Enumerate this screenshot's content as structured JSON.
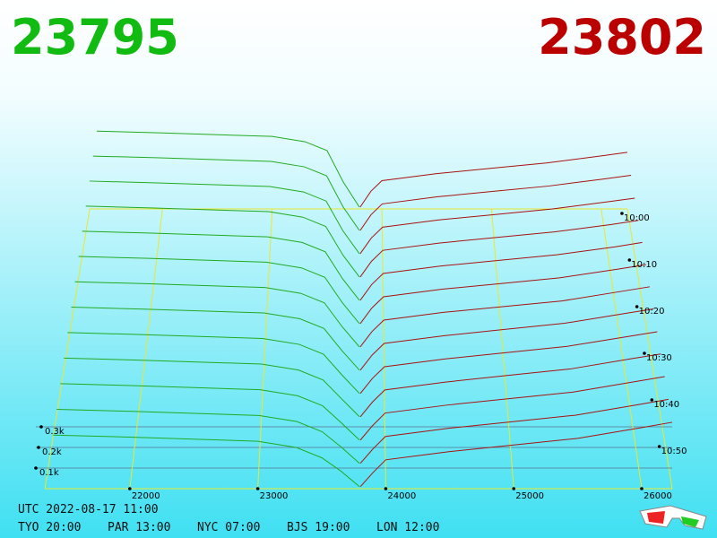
{
  "chart_data": {
    "type": "depth3d",
    "bid_price": 23795,
    "ask_price": 23802,
    "bid_color": "#11bb11",
    "ask_color": "#bb0000",
    "xlim": [
      21336,
      26238
    ],
    "xticks": [
      22000,
      23000,
      24000,
      25000,
      26000
    ],
    "zticks": [
      {
        "value": 100,
        "label": "0.1k"
      },
      {
        "value": 200,
        "label": "0.2k"
      },
      {
        "value": 300,
        "label": "0.3k"
      }
    ],
    "tlim": [
      0,
      60
    ],
    "tticks": [
      {
        "value": 0,
        "label": "10:00"
      },
      {
        "value": 10,
        "label": "10:10"
      },
      {
        "value": 20,
        "label": "10:20"
      },
      {
        "value": 30,
        "label": "10:30"
      },
      {
        "value": 40,
        "label": "10:40"
      },
      {
        "value": 50,
        "label": "10:50"
      }
    ],
    "t": [
      0,
      5,
      10,
      15,
      20,
      25,
      30,
      35,
      40,
      45,
      50,
      55,
      60
    ],
    "bids": {
      "color": "#22aa22",
      "x": [
        21400,
        22000,
        23000,
        23300,
        23500,
        23650,
        23795
      ],
      "values": [
        [
          440,
          430,
          410,
          380,
          330,
          150,
          10
        ],
        [
          425,
          415,
          395,
          365,
          315,
          140,
          10
        ],
        [
          410,
          400,
          380,
          350,
          300,
          135,
          10
        ],
        [
          395,
          385,
          365,
          335,
          285,
          130,
          10
        ],
        [
          380,
          370,
          350,
          320,
          270,
          125,
          10
        ],
        [
          365,
          355,
          335,
          305,
          255,
          120,
          10
        ],
        [
          350,
          340,
          320,
          290,
          240,
          115,
          10
        ],
        [
          335,
          325,
          305,
          275,
          225,
          110,
          10
        ],
        [
          320,
          310,
          290,
          260,
          210,
          105,
          10
        ],
        [
          305,
          295,
          275,
          245,
          195,
          100,
          10
        ],
        [
          290,
          280,
          260,
          230,
          180,
          95,
          10
        ],
        [
          275,
          265,
          245,
          215,
          165,
          90,
          10
        ],
        [
          260,
          250,
          230,
          200,
          150,
          85,
          10
        ]
      ]
    },
    "asks": {
      "color": "#aa1111",
      "x": [
        23802,
        23900,
        24000,
        24500,
        25000,
        25500,
        26000,
        26238
      ],
      "values": [
        [
          10,
          100,
          160,
          200,
          230,
          260,
          300,
          320
        ],
        [
          10,
          98,
          158,
          198,
          228,
          258,
          298,
          318
        ],
        [
          10,
          96,
          156,
          196,
          226,
          256,
          296,
          316
        ],
        [
          10,
          95,
          155,
          195,
          225,
          255,
          295,
          318
        ],
        [
          10,
          94,
          154,
          194,
          224,
          254,
          296,
          320
        ],
        [
          10,
          92,
          152,
          192,
          222,
          252,
          298,
          322
        ],
        [
          10,
          90,
          150,
          190,
          220,
          250,
          300,
          324
        ],
        [
          10,
          88,
          148,
          188,
          220,
          252,
          302,
          326
        ],
        [
          10,
          86,
          146,
          186,
          218,
          250,
          300,
          324
        ],
        [
          10,
          84,
          145,
          185,
          218,
          250,
          302,
          326
        ],
        [
          10,
          82,
          144,
          184,
          216,
          248,
          300,
          325
        ],
        [
          10,
          80,
          142,
          182,
          214,
          246,
          298,
          324
        ],
        [
          10,
          78,
          140,
          180,
          212,
          244,
          296,
          322
        ]
      ]
    },
    "footer": {
      "utc": "UTC 2022-08-17 11:00",
      "clocks": [
        "TYO 20:00",
        "PAR 13:00",
        "NYC 07:00",
        "BJS 19:00",
        "LON 12:00"
      ]
    }
  }
}
